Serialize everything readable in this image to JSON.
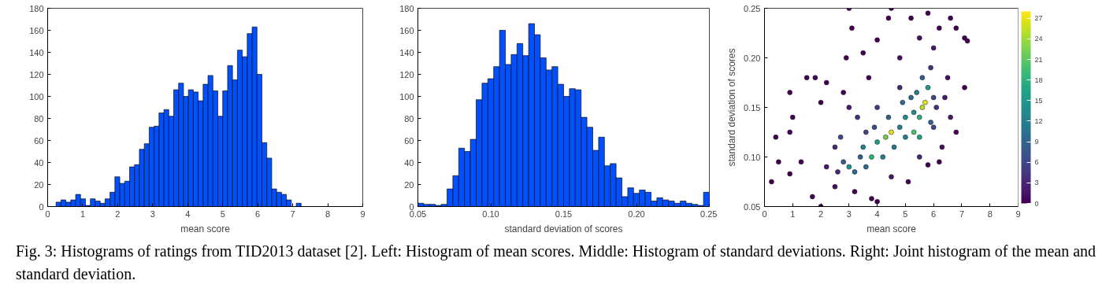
{
  "chart_data": [
    {
      "type": "histogram",
      "xlabel": "mean score",
      "color": "#0050ff",
      "bins": [
        0.24,
        0.38,
        0.52,
        0.66,
        0.8,
        0.94,
        1.08,
        1.22,
        1.36,
        1.5,
        1.64,
        1.78,
        1.92,
        2.06,
        2.2,
        2.34,
        2.48,
        2.62,
        2.76,
        2.9,
        3.04,
        3.18,
        3.32,
        3.46,
        3.6,
        3.74,
        3.88,
        4.02,
        4.16,
        4.3,
        4.44,
        4.58,
        4.72,
        4.86,
        5.0,
        5.14,
        5.28,
        5.42,
        5.56,
        5.7,
        5.84,
        5.98,
        6.12,
        6.26,
        6.4,
        6.54,
        6.68,
        6.82,
        6.96,
        7.1,
        7.24
      ],
      "values": [
        4,
        6,
        4,
        6,
        11,
        7,
        1,
        7,
        5,
        3,
        7,
        13,
        27,
        21,
        23,
        36,
        38,
        52,
        57,
        72,
        73,
        85,
        88,
        82,
        106,
        112,
        100,
        106,
        104,
        96,
        111,
        119,
        105,
        82,
        105,
        128,
        115,
        142,
        136,
        157,
        163,
        120,
        58,
        44,
        16,
        13,
        11,
        6,
        0,
        3
      ],
      "xlim": [
        0,
        9
      ],
      "xticks": [
        0,
        1,
        2,
        3,
        4,
        5,
        6,
        7,
        8,
        9
      ],
      "ylim": [
        0,
        180
      ],
      "yticks": [
        0,
        20,
        40,
        60,
        80,
        100,
        120,
        140,
        160,
        180
      ],
      "annotations": [
        "Fig. 3: Histograms of ratings from TID2013 dataset [2]. Left: Histogram of mean scores. Middle: Histogram of standard deviations. Right: Joint histogram of the mean and standard deviation."
      ]
    },
    {
      "type": "histogram",
      "xlabel": "standard deviation of scores",
      "color": "#0050ff",
      "bins": [
        0.05,
        0.054,
        0.058,
        0.062,
        0.066,
        0.07,
        0.074,
        0.078,
        0.082,
        0.086,
        0.09,
        0.094,
        0.098,
        0.102,
        0.106,
        0.11,
        0.114,
        0.118,
        0.122,
        0.126,
        0.13,
        0.134,
        0.138,
        0.142,
        0.146,
        0.15,
        0.154,
        0.158,
        0.162,
        0.166,
        0.17,
        0.174,
        0.178,
        0.182,
        0.186,
        0.19,
        0.194,
        0.198,
        0.202,
        0.206,
        0.21,
        0.214,
        0.218,
        0.222,
        0.226,
        0.23,
        0.234,
        0.238,
        0.242,
        0.246,
        0.25
      ],
      "values": [
        3,
        2,
        2,
        1,
        2,
        16,
        28,
        53,
        50,
        61,
        97,
        112,
        116,
        127,
        160,
        129,
        138,
        148,
        137,
        166,
        156,
        135,
        124,
        127,
        111,
        100,
        107,
        106,
        81,
        72,
        51,
        63,
        37,
        39,
        26,
        9,
        17,
        12,
        15,
        13,
        5,
        8,
        6,
        5,
        3,
        5,
        3,
        2,
        1,
        13
      ],
      "xlim": [
        0.05,
        0.25
      ],
      "xticks": [
        0.05,
        {
          "value": 0.1,
          "label": "0.10"
        },
        0.15,
        {
          "value": 0.2,
          "label": "0.20"
        },
        0.25
      ],
      "ylim": [
        0,
        180
      ],
      "yticks": [
        0,
        20,
        40,
        60,
        80,
        100,
        120,
        140,
        160,
        180
      ]
    },
    {
      "type": "scatter",
      "xlabel": "mean score",
      "ylabel": "standard deviation of scores",
      "marker": "circle",
      "x": [
        3.0,
        3.8,
        4.3,
        4.5,
        5.3,
        5.6,
        5.7,
        5.5,
        5.8,
        3.5,
        4.0,
        4.8,
        5.0,
        5.2,
        5.6,
        6.0,
        3.2,
        2.8,
        4.2,
        3.6,
        5.0,
        5.5,
        6.0,
        5.9,
        0.25,
        0.4,
        0.5,
        0.9,
        1.0,
        0.9,
        1.5,
        1.8,
        1.3,
        0.9,
        1.7,
        2.0,
        2.2,
        2.0,
        2.8,
        3.1,
        2.9,
        3.5,
        4.0,
        3.7,
        4.4,
        5.2,
        5.8,
        6.6,
        6.2,
        7.1,
        7.2,
        6.8,
        7.1,
        6.8,
        6.2,
        5.8,
        5.1,
        4.0,
        3.8,
        3.2,
        2.5,
        2.2,
        2.5,
        3.0,
        4.8,
        5.5,
        6.0,
        6.5,
        6.6,
        6.3,
        4.5,
        5.5,
        4.8,
        3.3,
        4.0,
        3.0,
        4.5,
        2.7,
        3.4,
        4.6,
        5.3,
        6.1,
        5.9,
        4.9,
        3.9,
        2.6,
        6.4,
        5.4,
        4.4,
        3.6
      ],
      "values": [
        0.09,
        0.1,
        0.12,
        0.125,
        0.125,
        0.15,
        0.155,
        0.14,
        0.17,
        0.11,
        0.115,
        0.13,
        0.14,
        0.16,
        0.18,
        0.16,
        0.085,
        0.095,
        0.1,
        0.09,
        0.12,
        0.12,
        0.13,
        0.19,
        0.075,
        0.12,
        0.095,
        0.165,
        0.14,
        0.125,
        0.18,
        0.18,
        0.095,
        0.083,
        0.06,
        0.05,
        0.175,
        0.155,
        0.165,
        0.23,
        0.2,
        0.205,
        0.218,
        0.18,
        0.24,
        0.24,
        0.245,
        0.24,
        0.23,
        0.22,
        0.217,
        0.23,
        0.17,
        0.125,
        0.095,
        0.092,
        0.075,
        0.055,
        0.058,
        0.065,
        0.07,
        0.09,
        0.11,
        0.15,
        0.2,
        0.22,
        0.21,
        0.18,
        0.14,
        0.11,
        0.08,
        0.1,
        0.17,
        0.14,
        0.15,
        0.25,
        0.25,
        0.12,
        0.1,
        0.11,
        0.145,
        0.15,
        0.135,
        0.155,
        0.13,
        0.085,
        0.16,
        0.165,
        0.14,
        0.125
      ],
      "cvalues": [
        14,
        18,
        22,
        27,
        20,
        25,
        27,
        18,
        15,
        12,
        16,
        12,
        14,
        10,
        8,
        6,
        10,
        8,
        12,
        10,
        12,
        16,
        6,
        4,
        0,
        0,
        0,
        0,
        0,
        0,
        0,
        0,
        0,
        0,
        0,
        0,
        0,
        0,
        0,
        0,
        0,
        0,
        0,
        0,
        0,
        0,
        0,
        0,
        0,
        0,
        0,
        0,
        0,
        0,
        0,
        0,
        0,
        0,
        0,
        0,
        1,
        2,
        3,
        2,
        1,
        1,
        2,
        1,
        2,
        1,
        2,
        3,
        3,
        4,
        5,
        0,
        0,
        6,
        9,
        11,
        13,
        4,
        9,
        10,
        7,
        3,
        2,
        12,
        9,
        6
      ],
      "clim": [
        0,
        28
      ],
      "cticks": [
        0,
        3,
        6,
        9,
        12,
        15,
        18,
        21,
        24,
        27
      ],
      "xlim": [
        0,
        9
      ],
      "xticks": [
        0,
        1,
        2,
        3,
        4,
        5,
        6,
        7,
        8,
        9
      ],
      "ylim": [
        0.05,
        0.25
      ],
      "yticks": [
        0.05,
        {
          "value": 0.1,
          "label": "0.10"
        },
        0.15,
        {
          "value": 0.2,
          "label": "0.20"
        },
        0.25
      ]
    }
  ]
}
